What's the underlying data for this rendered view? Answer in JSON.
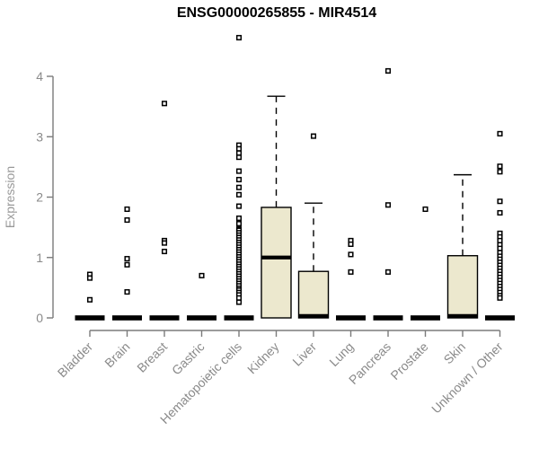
{
  "title": "ENSG00000265855 - MIR4514",
  "chart_data": {
    "type": "boxplot",
    "title": "ENSG00000265855 - MIR4514",
    "xlabel": "",
    "ylabel": "Expression",
    "ylim": [
      0,
      4
    ],
    "yticks": [
      0,
      1,
      2,
      3,
      4
    ],
    "grid": false,
    "legend": "none",
    "categories": [
      "Bladder",
      "Brain",
      "Breast",
      "Gastric",
      "Hematopoietic cells",
      "Kidney",
      "Liver",
      "Lung",
      "Pancreas",
      "Prostate",
      "Skin",
      "Unknown / Other"
    ],
    "boxes": [
      {
        "category": "Bladder",
        "whisker_low": 0,
        "q1": 0,
        "median": 0,
        "q3": 0,
        "whisker_high": 0
      },
      {
        "category": "Brain",
        "whisker_low": 0,
        "q1": 0,
        "median": 0,
        "q3": 0,
        "whisker_high": 0
      },
      {
        "category": "Breast",
        "whisker_low": 0,
        "q1": 0,
        "median": 0,
        "q3": 0,
        "whisker_high": 0
      },
      {
        "category": "Gastric",
        "whisker_low": 0,
        "q1": 0,
        "median": 0,
        "q3": 0,
        "whisker_high": 0
      },
      {
        "category": "Hematopoietic cells",
        "whisker_low": 0,
        "q1": 0,
        "median": 0,
        "q3": 0,
        "whisker_high": 0
      },
      {
        "category": "Kidney",
        "whisker_low": 0,
        "q1": 0,
        "median": 1.0,
        "q3": 1.83,
        "whisker_high": 3.67
      },
      {
        "category": "Liver",
        "whisker_low": 0,
        "q1": 0,
        "median": 0,
        "q3": 0.77,
        "whisker_high": 1.9
      },
      {
        "category": "Lung",
        "whisker_low": 0,
        "q1": 0,
        "median": 0,
        "q3": 0,
        "whisker_high": 0
      },
      {
        "category": "Pancreas",
        "whisker_low": 0,
        "q1": 0,
        "median": 0,
        "q3": 0,
        "whisker_high": 0
      },
      {
        "category": "Prostate",
        "whisker_low": 0,
        "q1": 0,
        "median": 0,
        "q3": 0,
        "whisker_high": 0
      },
      {
        "category": "Skin",
        "whisker_low": 0,
        "q1": 0,
        "median": 0,
        "q3": 1.03,
        "whisker_high": 2.37
      },
      {
        "category": "Unknown / Other",
        "whisker_low": 0,
        "q1": 0,
        "median": 0,
        "q3": 0,
        "whisker_high": 0
      }
    ],
    "outliers": [
      [
        0.72,
        0.66,
        0.3
      ],
      [
        1.8,
        1.62,
        0.98,
        0.88,
        0.43
      ],
      [
        3.55,
        1.28,
        1.24,
        1.1
      ],
      [
        0.7
      ],
      [
        4.64,
        2.86,
        2.8,
        2.73,
        2.66,
        2.43,
        2.29,
        2.16,
        2.04,
        1.85,
        1.65,
        1.56,
        1.47,
        1.45,
        1.41,
        1.37,
        1.33,
        1.29,
        1.25,
        1.21,
        1.17,
        1.13,
        1.09,
        1.05,
        1.01,
        0.97,
        0.93,
        0.89,
        0.85,
        0.81,
        0.77,
        0.73,
        0.69,
        0.65,
        0.61,
        0.57,
        0.53,
        0.49,
        0.46,
        0.42,
        0.38,
        0.33,
        0.26
      ],
      [],
      [
        3.01
      ],
      [
        1.28,
        1.22,
        1.05,
        0.76
      ],
      [
        4.09,
        1.87,
        0.76
      ],
      [
        1.8
      ],
      [],
      [
        3.05,
        2.51,
        2.42,
        1.93,
        1.74,
        1.4,
        1.34,
        1.28,
        1.21,
        1.15,
        1.08,
        1.02,
        0.97,
        0.92,
        0.87,
        0.82,
        0.77,
        0.72,
        0.67,
        0.62,
        0.57,
        0.52,
        0.47,
        0.42,
        0.37,
        0.33
      ]
    ],
    "colors": {
      "box_fill": "#ece8ce",
      "box_border": "#000000",
      "median": "#000000",
      "whisker": "#000000",
      "outlier_stroke": "#000000",
      "outlier_fill": "#ffffff",
      "axis": "#7b7b7b",
      "tick_label": "#8a8a8a",
      "axis_label": "#999999",
      "title": "#000000",
      "background": "#ffffff"
    }
  }
}
